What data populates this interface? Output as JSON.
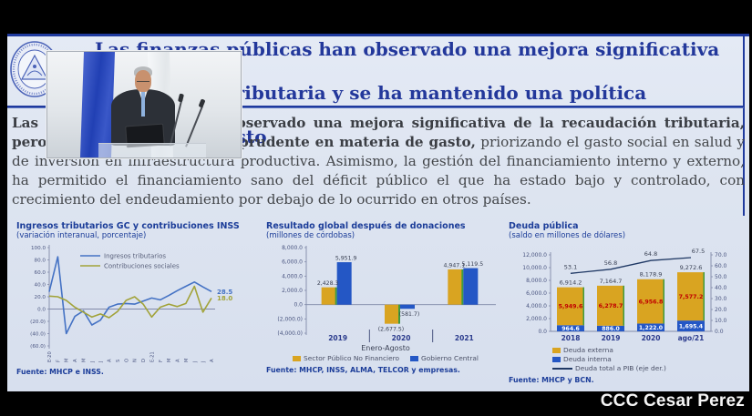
{
  "watermark": "CCC Cesar Perez",
  "slide": {
    "title": {
      "line1": "Las finanzas públicas han observado una mejora significativa de la",
      "line2_main": "recaudación tributaria y se ha mantenido una política ",
      "line2_light": "prudente en",
      "line3": "materia de gasto"
    },
    "body": {
      "bold": "Las finanzas públicas han observado una mejora significativa de la recaudación tributaria, pero mantenido una política prudente en materia de gasto,",
      "regular": " priorizando el gasto social en salud y de inversión en infraestructura productiva. Asimismo, la gestión del financiamiento interno y externo, ha permitido el financiamiento sano del déficit público el que ha estado bajo y controlado, con crecimiento del endeudamiento por debajo de lo ocurrido en otros países."
    }
  },
  "chart_data": [
    {
      "type": "line",
      "title": "Ingresos tributarios GC y contribuciones INSS",
      "subtitle": "(variación interanual, porcentaje)",
      "x": [
        "E-20",
        "F",
        "M",
        "A",
        "M",
        "J",
        "J",
        "A",
        "S",
        "O",
        "N",
        "D",
        "E-21",
        "F",
        "M",
        "A",
        "M",
        "J",
        "J",
        "A"
      ],
      "series": [
        {
          "name": "Ingresos tributarios",
          "color": "#4472c4",
          "end_label": "28.5",
          "values": [
            28,
            85,
            -40,
            -12,
            -3,
            -26,
            -18,
            3,
            8,
            9,
            8,
            13,
            18,
            15,
            22,
            30,
            37,
            44,
            36,
            28.5
          ]
        },
        {
          "name": "Contribuciones sociales",
          "color": "#a2a33a",
          "end_label": "18.0",
          "values": [
            21,
            20,
            14,
            3,
            -5,
            -13,
            -8,
            -14,
            -4,
            14,
            20,
            8,
            -13,
            3,
            8,
            4,
            9,
            37,
            -5,
            18
          ]
        }
      ],
      "ylim": [
        -60,
        100
      ],
      "ytick_values": [
        100,
        80,
        60,
        40,
        20,
        0,
        -20,
        -40,
        -60
      ],
      "yticks": [
        "100.0",
        "80.0",
        "60.0",
        "40.0",
        "20.0",
        "0.0",
        "(20.0)",
        "(40.0)",
        "(60.0)"
      ],
      "grid": false,
      "legend_position": "top-inside",
      "fuente": "Fuente: MHCP e INSS."
    },
    {
      "type": "bar",
      "title": "Resultado global después de donaciones",
      "subtitle": "(millones de córdobas)",
      "categories": [
        "2019",
        "2020",
        "2021"
      ],
      "xlabel": "Enero-Agosto",
      "series": [
        {
          "name": "Sector Público No Financiero",
          "color": "#d9a421",
          "edge_color": "#3f9b3f",
          "values": [
            2428.3,
            -2677.5,
            4947.1
          ],
          "labels": [
            "2,428.3",
            "(2,677.5)",
            "4,947.1"
          ]
        },
        {
          "name": "Gobierno Central",
          "color": "#2457c5",
          "values": [
            5951.9,
            -581.7,
            5119.5
          ],
          "labels": [
            "5,951.9",
            "(581.7)",
            "5,119.5"
          ]
        }
      ],
      "ylim": [
        -4000,
        8000
      ],
      "ytick_values": [
        8000,
        6000,
        4000,
        2000,
        0,
        -2000,
        -4000
      ],
      "yticks": [
        "8,000.0",
        "6,000.0",
        "4,000.0",
        "2,000.0",
        "0.0",
        "(2,000.0)",
        "(4,000.0)"
      ],
      "grid": false,
      "legend_position": "bottom",
      "fuente": "Fuente: MHCP, INSS, ALMA, TELCOR y empresas."
    },
    {
      "type": "stacked-bar-line",
      "title": "Deuda pública",
      "subtitle": "(saldo en millones de dólares)",
      "categories": [
        "2018",
        "2019",
        "2020",
        "ago/21"
      ],
      "series": [
        {
          "name": "Deuda externa",
          "color": "#d9a421",
          "edge_color": "#3f9b3f",
          "label_color": "#c00000",
          "values": [
            5949.6,
            6278.7,
            6956.8,
            7577.2
          ],
          "labels": [
            "5,949.6",
            "6,278.7",
            "6,956.8",
            "7,577.2"
          ]
        },
        {
          "name": "Deuda interna",
          "color": "#2457c5",
          "label_color": "#ffffff",
          "values": [
            964.6,
            886.0,
            1222.0,
            1695.4
          ],
          "labels": [
            "964.6",
            "886.0",
            "1,222.0",
            "1,695.4"
          ]
        }
      ],
      "totals_labels": [
        "6,914.2",
        "7,164.7",
        "8,178.9",
        "9,272.6"
      ],
      "line": {
        "name": "Deuda total a PIB (eje der.)",
        "color": "#1f3864",
        "values": [
          53.1,
          56.8,
          64.8,
          67.5
        ],
        "labels": [
          "53.1",
          "56.8",
          "64.8",
          "67.5"
        ]
      },
      "ylim_left": [
        0,
        12000
      ],
      "ytick_values_left": [
        12000,
        10000,
        8000,
        6000,
        4000,
        2000,
        0
      ],
      "yticks_left": [
        "12,000.0",
        "10,000.0",
        "8,000.0",
        "6,000.0",
        "4,000.0",
        "2,000.0",
        "0.0"
      ],
      "ylim_right": [
        0,
        70
      ],
      "ytick_values_right": [
        70,
        60,
        50,
        40,
        30,
        20,
        10,
        0
      ],
      "yticks_right": [
        "70.0",
        "60.0",
        "50.0",
        "40.0",
        "30.0",
        "20.0",
        "10.0",
        "0.0"
      ],
      "grid": false,
      "legend_position": "bottom-left",
      "fuente": "Fuente: MHCP y BCN."
    }
  ]
}
